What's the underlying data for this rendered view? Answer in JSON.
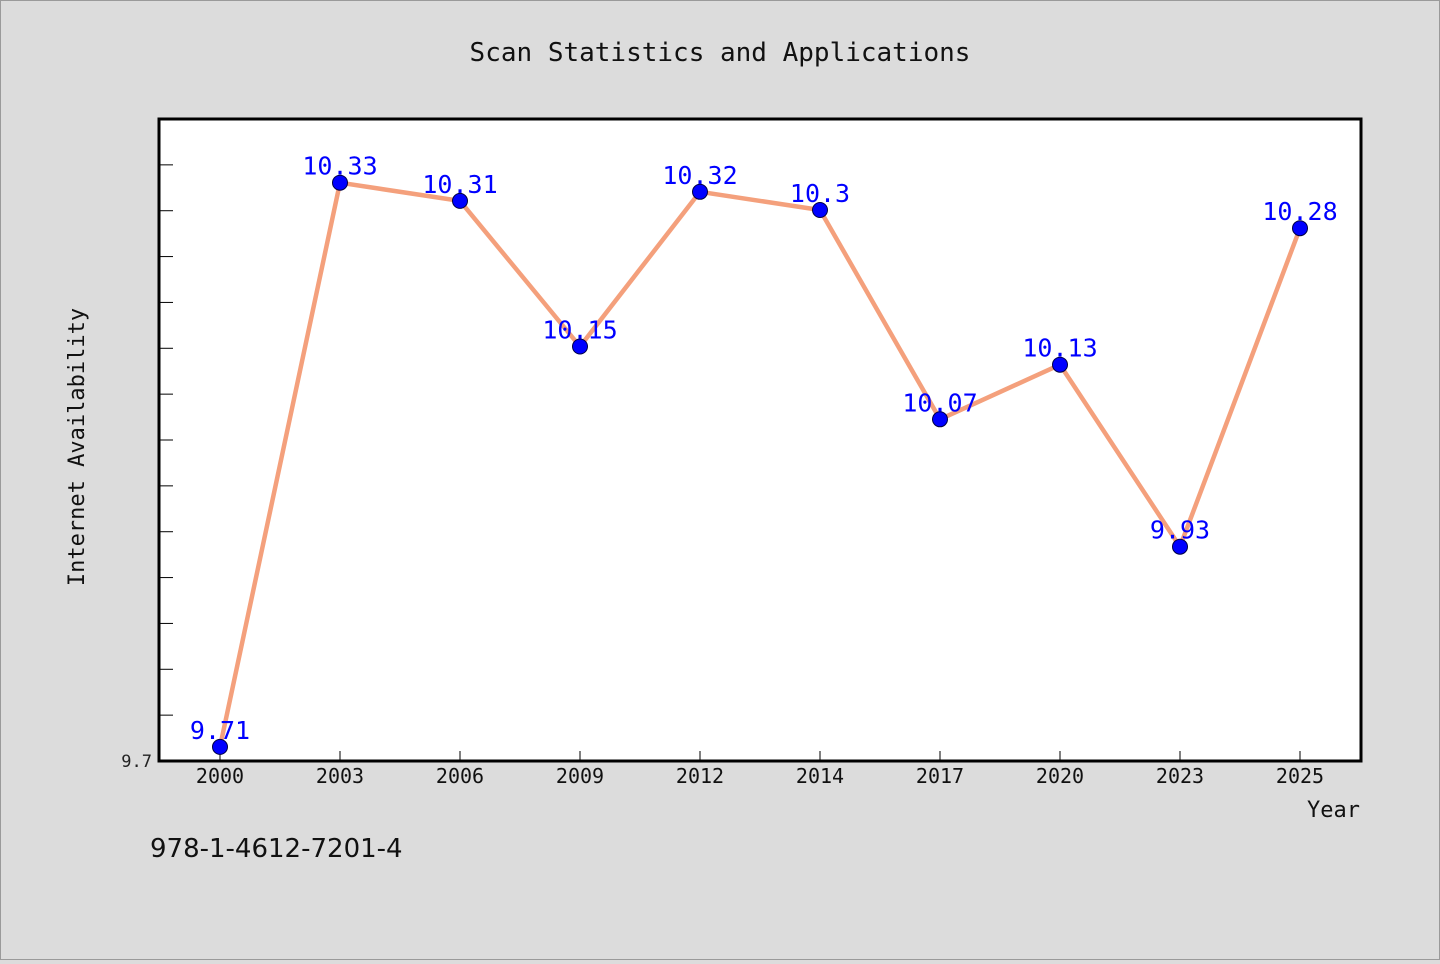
{
  "chart_data": {
    "type": "line",
    "title": "Scan Statistics and Applications",
    "xlabel": "Year",
    "ylabel": "Internet Availability",
    "categories": [
      "2000",
      "2003",
      "2006",
      "2009",
      "2012",
      "2014",
      "2017",
      "2020",
      "2023",
      "2025"
    ],
    "series": [
      {
        "values": [
          9.71,
          10.33,
          10.31,
          10.15,
          10.32,
          10.3,
          10.07,
          10.13,
          9.93,
          10.28
        ],
        "labels": [
          "9.71",
          "10.33",
          "10.31",
          "10.15",
          "10.32",
          "10.3",
          "10.07",
          "10.13",
          "9.93",
          "10.28"
        ],
        "line_color": "#f4a07c",
        "marker_color": "#0000ff",
        "label_color": "#0000ff"
      }
    ],
    "ylim": [
      9.7,
      10.4
    ],
    "y_tick_labels": [
      "9.7"
    ],
    "grid": false,
    "legend": "none"
  },
  "footer": {
    "caption": "978-1-4612-7201-4"
  },
  "colors": {
    "background": "#dcdcdc",
    "plot_background": "#ffffff",
    "axis": "#000000"
  }
}
